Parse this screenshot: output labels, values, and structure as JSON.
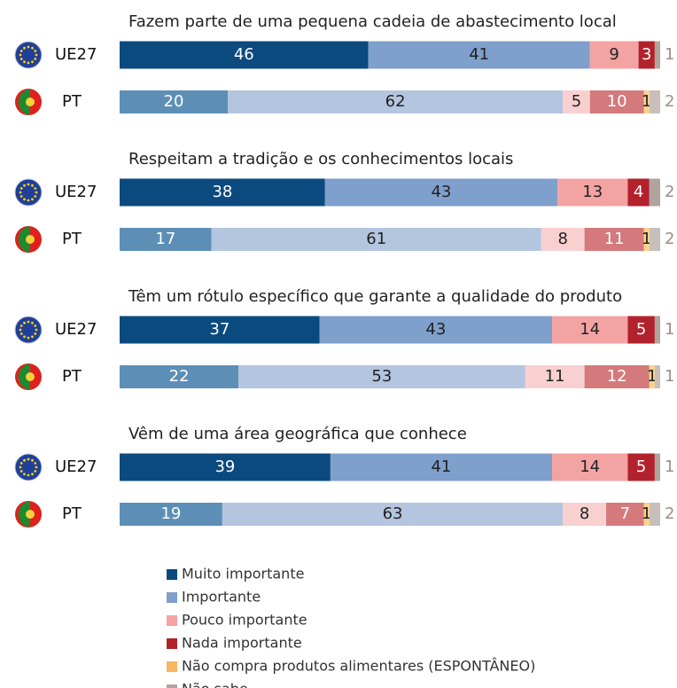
{
  "chart_data": {
    "type": "stacked_bar",
    "orientation": "horizontal",
    "categories": [
      "UE27",
      "PT"
    ],
    "xlim": [
      0,
      100
    ],
    "series": [
      {
        "name": "Muito importante",
        "colors": [
          "#0b4a7e",
          "#5d8fb6"
        ]
      },
      {
        "name": "Importante",
        "colors": [
          "#7f9fcc",
          "#b3c5df"
        ]
      },
      {
        "name": "Pouco importante",
        "colors": [
          "#f4a3a3",
          "#f8d0d0"
        ]
      },
      {
        "name": "Nada importante",
        "colors": [
          "#b2222c",
          "#d47a7c"
        ]
      },
      {
        "name": "Não compra produtos alimentares (ESPONTÂNEO)",
        "colors": [
          "#f6b860",
          "#fbd38b"
        ]
      },
      {
        "name": "Não sabe",
        "colors": [
          "#b0a49f",
          "#c8bfbb"
        ]
      }
    ],
    "groups": [
      {
        "title": "Fazem parte de uma pequena cadeia de abastecimento local",
        "values": [
          [
            46,
            41,
            9,
            3,
            null,
            1
          ],
          [
            20,
            62,
            5,
            10,
            1,
            2
          ]
        ]
      },
      {
        "title": "Respeitam a tradição e os conhecimentos locais",
        "values": [
          [
            38,
            43,
            13,
            4,
            null,
            2
          ],
          [
            17,
            61,
            8,
            11,
            1,
            2
          ]
        ]
      },
      {
        "title": "Têm um rótulo específico que garante a qualidade do produto",
        "values": [
          [
            37,
            43,
            14,
            5,
            null,
            1
          ],
          [
            22,
            53,
            11,
            12,
            1,
            1
          ]
        ]
      },
      {
        "title": "Vêm de uma área geográfica que conhece",
        "values": [
          [
            39,
            41,
            14,
            5,
            null,
            1
          ],
          [
            19,
            63,
            8,
            7,
            1,
            2
          ]
        ]
      }
    ]
  }
}
